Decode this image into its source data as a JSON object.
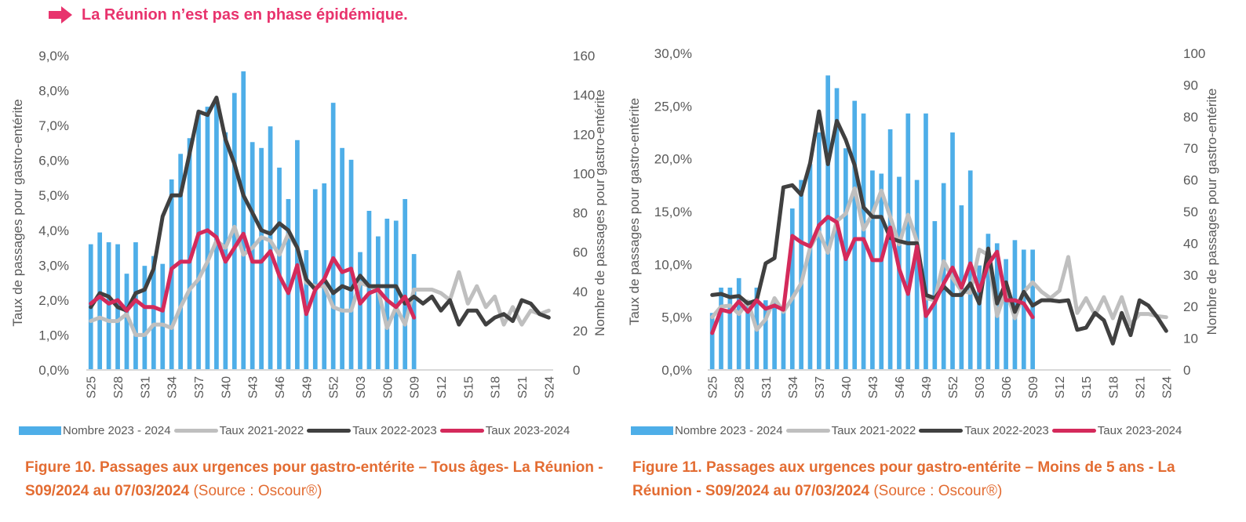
{
  "headline": {
    "text": "La Réunion n’est pas en phase épidémique.",
    "color": "#e8336d",
    "icon": "right-arrow-icon"
  },
  "colors": {
    "bars": "#4eaee8",
    "taux_2021_2022": "#bfbfbf",
    "taux_2022_2023": "#404040",
    "taux_2023_2024": "#d42a5b",
    "axis_text": "#595959",
    "caption": "#e36c32"
  },
  "legend": [
    {
      "label": "Nombre 2023 - 2024",
      "kind": "bar",
      "color": "#4eaee8"
    },
    {
      "label": "Taux 2021-2022",
      "kind": "line",
      "color": "#bfbfbf"
    },
    {
      "label": "Taux 2022-2023",
      "kind": "line",
      "color": "#404040"
    },
    {
      "label": "Taux 2023-2024",
      "kind": "line",
      "color": "#d42a5b"
    }
  ],
  "captions": [
    {
      "bold": "Figure 10. Passages aux urgences pour gastro-entérite – Tous âges- La Réunion - S09/2024 au 07/03/2024",
      "source": " (Source : Oscour®)"
    },
    {
      "bold": "Figure 11. Passages aux urgences pour gastro-entérite  – Moins de 5 ans - La Réunion - S09/2024 au 07/03/2024",
      "source": " (Source : Oscour®)"
    }
  ],
  "chart_data": [
    {
      "type": "bar+line",
      "title": "Figure 10. Passages aux urgences pour gastro-entérite – Tous âges - La Réunion",
      "x": [
        "S25",
        "S26",
        "S27",
        "S28",
        "S29",
        "S30",
        "S31",
        "S32",
        "S33",
        "S34",
        "S35",
        "S36",
        "S37",
        "S38",
        "S39",
        "S40",
        "S41",
        "S42",
        "S43",
        "S44",
        "S45",
        "S46",
        "S47",
        "S48",
        "S49",
        "S50",
        "S51",
        "S52",
        "S01",
        "S02",
        "S03",
        "S04",
        "S05",
        "S06",
        "S07",
        "S08",
        "S09",
        "S10",
        "S11",
        "S12",
        "S13",
        "S14",
        "S15",
        "S16",
        "S17",
        "S18",
        "S19",
        "S20",
        "S21",
        "S22",
        "S23",
        "S24"
      ],
      "xtick_labels": [
        "S25",
        "S28",
        "S31",
        "S34",
        "S37",
        "S40",
        "S43",
        "S46",
        "S49",
        "S52",
        "S03",
        "S06",
        "S09",
        "S12",
        "S15",
        "S18",
        "S21",
        "S24"
      ],
      "ylabel_left": "Taux de passages pour gastro-entérite",
      "ylabel_right": "Nombre de passages pour gastro-entérite",
      "ylim_left": [
        0,
        9
      ],
      "yticks_left": [
        "0,0%",
        "1,0%",
        "2,0%",
        "3,0%",
        "4,0%",
        "5,0%",
        "6,0%",
        "7,0%",
        "8,0%",
        "9,0%"
      ],
      "ylim_right": [
        0,
        160
      ],
      "yticks_right": [
        "0",
        "20",
        "40",
        "60",
        "80",
        "100",
        "120",
        "140",
        "160"
      ],
      "series": [
        {
          "name": "Nombre 2023 - 2024",
          "type": "bar",
          "axis": "right",
          "values": [
            64,
            70,
            65,
            64,
            49,
            65,
            53,
            58,
            54,
            97,
            110,
            118,
            131,
            134,
            136,
            121,
            141,
            152,
            116,
            113,
            124,
            103,
            87,
            117,
            61,
            92,
            95,
            136,
            113,
            107,
            60,
            81,
            68,
            77,
            76,
            87,
            59
          ]
        },
        {
          "name": "Taux 2021-2022",
          "type": "line",
          "axis": "left",
          "values": [
            1.4,
            1.5,
            1.4,
            1.4,
            1.6,
            1.0,
            1.0,
            1.3,
            1.3,
            1.2,
            1.8,
            2.3,
            2.6,
            3.1,
            3.7,
            3.5,
            4.1,
            3.3,
            3.5,
            3.8,
            3.7,
            3.3,
            3.9,
            3.5,
            2.5,
            2.4,
            2.4,
            1.8,
            1.7,
            1.7,
            2.5,
            2.4,
            2.3,
            1.2,
            1.8,
            1.3,
            2.3,
            2.3,
            2.3,
            2.2,
            2.0,
            2.8,
            1.9,
            2.4,
            1.8,
            2.1,
            1.3,
            1.8,
            1.3,
            1.7,
            1.6,
            1.7
          ]
        },
        {
          "name": "Taux 2022-2023",
          "type": "line",
          "axis": "left",
          "values": [
            1.8,
            2.2,
            2.1,
            1.8,
            1.7,
            2.2,
            2.3,
            2.9,
            4.4,
            5.0,
            5.0,
            6.2,
            7.4,
            7.3,
            7.8,
            6.6,
            5.9,
            5.0,
            4.5,
            4.0,
            3.9,
            4.2,
            4.0,
            3.5,
            2.6,
            2.3,
            2.6,
            2.2,
            2.4,
            2.3,
            2.7,
            2.4,
            2.4,
            2.4,
            2.4,
            1.9,
            2.1,
            1.9,
            2.1,
            1.7,
            2.0,
            1.3,
            1.7,
            1.7,
            1.3,
            1.5,
            1.6,
            1.4,
            2.0,
            1.9,
            1.6,
            1.5
          ]
        },
        {
          "name": "Taux 2023-2024",
          "type": "line",
          "axis": "left",
          "values": [
            1.9,
            2.1,
            1.9,
            2.0,
            1.7,
            2.0,
            1.8,
            1.8,
            1.7,
            2.9,
            3.1,
            3.1,
            3.9,
            4.0,
            3.8,
            3.1,
            3.5,
            3.9,
            3.1,
            3.1,
            3.4,
            2.7,
            2.2,
            3.0,
            1.6,
            2.3,
            2.6,
            3.2,
            2.8,
            2.9,
            1.9,
            2.2,
            2.3,
            2.0,
            1.8,
            2.1,
            1.5
          ]
        }
      ]
    },
    {
      "type": "bar+line",
      "title": "Figure 11. Passages aux urgences pour gastro-entérite – Moins de 5 ans - La Réunion",
      "x": [
        "S25",
        "S26",
        "S27",
        "S28",
        "S29",
        "S30",
        "S31",
        "S32",
        "S33",
        "S34",
        "S35",
        "S36",
        "S37",
        "S38",
        "S39",
        "S40",
        "S41",
        "S42",
        "S43",
        "S44",
        "S45",
        "S46",
        "S47",
        "S48",
        "S49",
        "S50",
        "S51",
        "S52",
        "S01",
        "S02",
        "S03",
        "S04",
        "S05",
        "S06",
        "S07",
        "S08",
        "S09",
        "S10",
        "S11",
        "S12",
        "S13",
        "S14",
        "S15",
        "S16",
        "S17",
        "S18",
        "S19",
        "S20",
        "S21",
        "S22",
        "S23",
        "S24"
      ],
      "xtick_labels": [
        "S25",
        "S28",
        "S31",
        "S34",
        "S37",
        "S40",
        "S43",
        "S46",
        "S49",
        "S52",
        "S03",
        "S06",
        "S09",
        "S12",
        "S15",
        "S18",
        "S21",
        "S24"
      ],
      "ylabel_left": "Taux de passages pour gastro-entérite",
      "ylabel_right": "Nombre de passages pour gastro-entérite",
      "ylim_left": [
        0,
        30
      ],
      "yticks_left": [
        "0,0%",
        "5,0%",
        "10,0%",
        "15,0%",
        "20,0%",
        "25,0%",
        "30,0%"
      ],
      "ylim_right": [
        0,
        100
      ],
      "yticks_right": [
        "0",
        "10",
        "20",
        "30",
        "40",
        "50",
        "60",
        "70",
        "80",
        "90",
        "100"
      ],
      "series": [
        {
          "name": "Nombre 2023 - 2024",
          "type": "bar",
          "axis": "right",
          "values": [
            18,
            26,
            26,
            29,
            22,
            26,
            22,
            22,
            20,
            51,
            60,
            65,
            75,
            93,
            89,
            70,
            85,
            81,
            63,
            62,
            76,
            61,
            81,
            60,
            81,
            47,
            59,
            75,
            52,
            63,
            33,
            43,
            40,
            35,
            41,
            38,
            38
          ]
        },
        {
          "name": "Taux 2021-2022",
          "type": "line",
          "axis": "left",
          "values": [
            5.0,
            6.0,
            6.1,
            5.3,
            6.5,
            3.8,
            4.8,
            6.8,
            5.5,
            6.8,
            8.2,
            11.6,
            13.1,
            11.1,
            14.1,
            14.8,
            17.2,
            13.3,
            14.8,
            17.0,
            14.5,
            11.9,
            14.7,
            12.2,
            6.8,
            6.6,
            10.3,
            8.7,
            7.5,
            7.3,
            11.4,
            10.9,
            5.1,
            7.6,
            4.9,
            7.4,
            8.3,
            7.4,
            6.8,
            7.5,
            10.7,
            5.4,
            6.8,
            5.2,
            6.9,
            4.9,
            6.9,
            4.3,
            5.3,
            5.3,
            5.1,
            5.0
          ]
        },
        {
          "name": "Taux 2022-2023",
          "type": "line",
          "axis": "left",
          "values": [
            7.1,
            7.2,
            6.9,
            7.0,
            6.3,
            6.6,
            10.1,
            10.6,
            17.3,
            17.5,
            16.6,
            19.6,
            24.5,
            19.5,
            23.6,
            21.8,
            19.4,
            15.4,
            14.5,
            14.5,
            12.5,
            12.2,
            12.0,
            12.0,
            7.1,
            6.8,
            7.9,
            7.1,
            7.1,
            8.2,
            6.3,
            11.5,
            6.3,
            8.3,
            5.5,
            7.4,
            6.1,
            6.6,
            6.6,
            6.5,
            6.6,
            3.8,
            4.0,
            5.4,
            4.7,
            2.5,
            5.4,
            3.3,
            6.6,
            6.1,
            5.0,
            3.7
          ]
        },
        {
          "name": "Taux 2023-2024",
          "type": "line",
          "axis": "left",
          "values": [
            3.5,
            5.7,
            5.5,
            6.5,
            5.5,
            6.6,
            5.8,
            6.1,
            5.7,
            12.7,
            12.1,
            11.7,
            13.7,
            14.5,
            14.0,
            10.5,
            12.4,
            12.4,
            10.4,
            10.4,
            13.5,
            9.6,
            7.2,
            11.7,
            5.1,
            6.4,
            8.2,
            9.7,
            7.8,
            10.1,
            7.5,
            10.0,
            11.2,
            6.6,
            6.6,
            6.3,
            5.0
          ]
        }
      ]
    }
  ]
}
